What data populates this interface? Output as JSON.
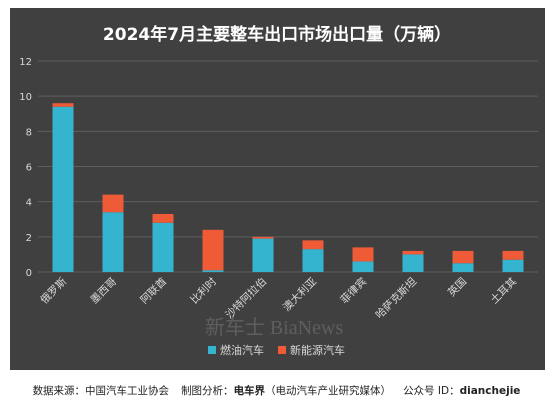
{
  "colors": {
    "panel_bg": "#404040",
    "grid": "#5e5e5e",
    "text": "#d9d9d9",
    "title_text": "#ffffff",
    "fuel": "#34b4cf",
    "nev": "#ef5a37"
  },
  "chart_data": {
    "type": "bar",
    "stacked": true,
    "title": "2024年7月主要整车出口市场出口量（万辆）",
    "categories": [
      "俄罗斯",
      "墨西哥",
      "阿联酋",
      "比利时",
      "沙特阿拉伯",
      "澳大利亚",
      "菲律宾",
      "哈萨克斯坦",
      "英国",
      "土耳其"
    ],
    "series": [
      {
        "name": "燃油汽车",
        "color": "#34b4cf",
        "values": [
          9.4,
          3.4,
          2.8,
          0.1,
          1.9,
          1.3,
          0.6,
          1.0,
          0.5,
          0.7
        ]
      },
      {
        "name": "新能源汽车",
        "color": "#ef5a37",
        "values": [
          0.2,
          1.0,
          0.5,
          2.3,
          0.1,
          0.5,
          0.8,
          0.2,
          0.7,
          0.5
        ]
      }
    ],
    "ylim": [
      0,
      12
    ],
    "yticks": [
      0,
      2,
      4,
      6,
      8,
      10,
      12
    ],
    "grid": true,
    "legend_position": "bottom"
  },
  "watermark": "新车士 BiaNews",
  "footer": {
    "source": "数据来源：中国汽车工业协会",
    "made_by": "制图分析：",
    "made_by_name": "电车界",
    "made_by_note": "（电动汽车产业研究媒体）",
    "account": "公众号 ID：",
    "account_id": "dianchejie"
  }
}
